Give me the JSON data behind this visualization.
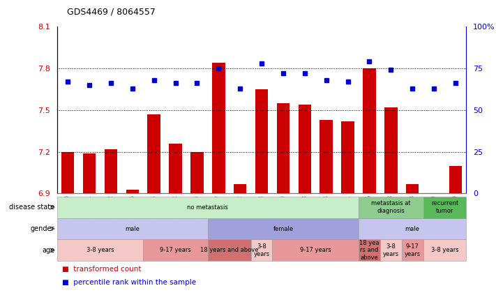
{
  "title": "GDS4469 / 8064557",
  "samples": [
    "GSM1025530",
    "GSM1025531",
    "GSM1025532",
    "GSM1025546",
    "GSM1025535",
    "GSM1025544",
    "GSM1025545",
    "GSM1025537",
    "GSM1025542",
    "GSM1025543",
    "GSM1025540",
    "GSM1025528",
    "GSM1025534",
    "GSM1025541",
    "GSM1025536",
    "GSM1025538",
    "GSM1025533",
    "GSM1025529",
    "GSM1025539"
  ],
  "bar_values": [
    7.2,
    7.19,
    7.22,
    6.93,
    7.47,
    7.26,
    7.2,
    7.84,
    6.97,
    7.65,
    7.55,
    7.54,
    7.43,
    7.42,
    7.8,
    7.52,
    6.97,
    6.9,
    7.1
  ],
  "dot_values": [
    67,
    65,
    66,
    63,
    68,
    66,
    66,
    75,
    63,
    78,
    72,
    72,
    68,
    67,
    79,
    74,
    63,
    63,
    66
  ],
  "bar_color": "#cc0000",
  "dot_color": "#0000cc",
  "ylim_left": [
    6.9,
    8.1
  ],
  "ylim_right": [
    0,
    100
  ],
  "yticks_left": [
    6.9,
    7.2,
    7.5,
    7.8,
    8.1
  ],
  "yticks_right": [
    0,
    25,
    50,
    75,
    100
  ],
  "ytick_labels_left": [
    "6.9",
    "7.2",
    "7.5",
    "7.8",
    "8.1"
  ],
  "ytick_labels_right": [
    "0",
    "25",
    "50",
    "75",
    "100%"
  ],
  "hlines": [
    7.2,
    7.5,
    7.8
  ],
  "disease_state_segments": [
    {
      "label": "no metastasis",
      "start": 0,
      "end": 14,
      "color": "#c8edc9"
    },
    {
      "label": "metastasis at\ndiagnosis",
      "start": 14,
      "end": 17,
      "color": "#8fcc8f"
    },
    {
      "label": "recurrent\ntumor",
      "start": 17,
      "end": 19,
      "color": "#5ab85a"
    }
  ],
  "gender_segments": [
    {
      "label": "male",
      "start": 0,
      "end": 7,
      "color": "#c5c5ee"
    },
    {
      "label": "female",
      "start": 7,
      "end": 14,
      "color": "#a0a0dd"
    },
    {
      "label": "male",
      "start": 14,
      "end": 19,
      "color": "#c5c5ee"
    }
  ],
  "age_segments": [
    {
      "label": "3-8 years",
      "start": 0,
      "end": 4,
      "color": "#f5c8c8"
    },
    {
      "label": "9-17 years",
      "start": 4,
      "end": 7,
      "color": "#e89898"
    },
    {
      "label": "18 years and above",
      "start": 7,
      "end": 9,
      "color": "#d07070"
    },
    {
      "label": "3-8\nyears",
      "start": 9,
      "end": 10,
      "color": "#f5c8c8"
    },
    {
      "label": "9-17 years",
      "start": 10,
      "end": 14,
      "color": "#e89898"
    },
    {
      "label": "18 yea\nrs and\nabove",
      "start": 14,
      "end": 15,
      "color": "#d07070"
    },
    {
      "label": "3-8\nyears",
      "start": 15,
      "end": 16,
      "color": "#f5c8c8"
    },
    {
      "label": "9-17\nyears",
      "start": 16,
      "end": 17,
      "color": "#e89898"
    },
    {
      "label": "3-8 years",
      "start": 17,
      "end": 19,
      "color": "#f5c8c8"
    }
  ],
  "row_labels": [
    "disease state",
    "gender",
    "age"
  ]
}
